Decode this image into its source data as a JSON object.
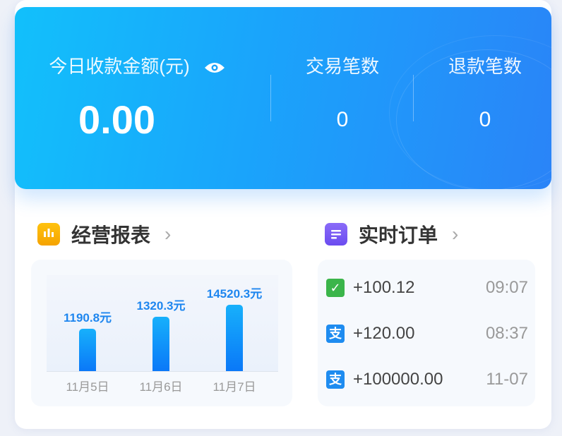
{
  "summary": {
    "today_amount_label": "今日收款金额(元)",
    "today_amount": "0.00",
    "trade_count_label": "交易笔数",
    "trade_count": "0",
    "refund_count_label": "退款笔数",
    "refund_count": "0",
    "visibility_icon": "eye-icon"
  },
  "report": {
    "title": "经营报表",
    "icon": "bar-chart-icon",
    "chevron": "›"
  },
  "chart_data": {
    "type": "bar",
    "categories": [
      "11月5日",
      "11月6日",
      "11月7日"
    ],
    "values": [
      1190.8,
      1320.3,
      14520.3
    ],
    "value_labels": [
      "1190.8元",
      "1320.3元",
      "14520.3元"
    ],
    "title": "",
    "xlabel": "",
    "ylabel": "",
    "grid": false,
    "bar_color": "#0a78f8"
  },
  "orders": {
    "title": "实时订单",
    "icon": "clipboard-icon",
    "chevron": "›",
    "items": [
      {
        "method": "wechat-pay",
        "icon_glyph": "✓",
        "amount": "+100.12",
        "time": "09:07",
        "color": "#3bb54a"
      },
      {
        "method": "alipay",
        "icon_glyph": "支",
        "amount": "+120.00",
        "time": "08:37",
        "color": "#1e8cf0"
      },
      {
        "method": "alipay",
        "icon_glyph": "支",
        "amount": "+100000.00",
        "time": "11-07",
        "color": "#1e8cf0"
      }
    ]
  },
  "colors": {
    "accent": "#1aa4fb",
    "report_icon": "#f7b500",
    "orders_icon": "#7a5cf5"
  }
}
